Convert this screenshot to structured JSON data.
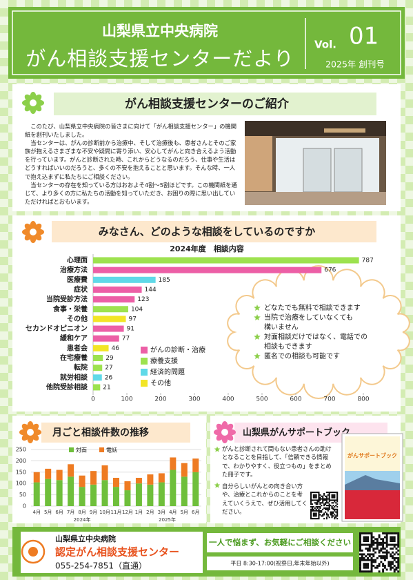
{
  "header": {
    "hospital": "山梨県立中央病院",
    "title": "がん相談支援センターだより",
    "vol_label": "Vol.",
    "vol_number": "01",
    "issue": "2025年 創刊号"
  },
  "intro": {
    "heading": "がん相談支援センターのご紹介",
    "paragraphs": [
      "このたび、山梨県立中央病院の皆さまに向けて「がん相談支援センター」の機関紙を創刊いたしました。",
      "当センターは、がんの診断前から治療中、そして治療後も、患者さんとそのご家族が抱えるさまざまな不安や疑問に寄り添い、安心してがんと向き合えるよう活動を行っています。がんと診断された時、これからどうなるのだろう、仕事や生活はどうすればいいのだろうと、多くの不安を抱えることと思います。そんな時、一人で抱え込まずに私たちにご相談ください。",
      "当センターの存在を知っている方はおおよそ4割〜5割ほどです。この機関紙を通じて、より多くの方に私たちの活動を知っていただき、お困りの際に思い出していただければとおもいます。"
    ]
  },
  "consult": {
    "heading": "みなさん、どのような相談をしているのですか",
    "bubble": [
      [
        "どなたでも無料で相談できます"
      ],
      [
        "当院で治療をしていなくても",
        "構いません"
      ],
      [
        "対面相談だけではなく、電話での",
        "相談もできます"
      ],
      [
        "匿名での相談も可能です"
      ]
    ]
  },
  "monthly": {
    "heading": "月ごと相談件数の推移"
  },
  "support_book": {
    "heading": "山梨県がんサポートブック",
    "items": [
      "がんと診断されて間もない患者さんの助けとなることを目指して、「信頼できる情報で、わかりやすく、役立つもの」をまとめた冊子です。",
      "自分らしいがんとの向き合い方や、治療とこれからのことを考えていくうえで、ぜひ活用してください。"
    ],
    "cover_title": "がんサポートブック"
  },
  "footer": {
    "hospital": "山梨県立中央病院",
    "center": "認定がん相談支援センター",
    "phone": "055-254-7851（直通）",
    "message": "一人で悩まず、お気軽にご相談ください",
    "hours": "平日 8:30-17:00(祝祭日,年末年始以外)"
  },
  "chart_data": [
    {
      "type": "barh",
      "title": "2024年度　相談内容",
      "categories": [
        "心理面",
        "治療方法",
        "医療費",
        "症状",
        "当院受診方法",
        "食事・栄養",
        "その他",
        "セカンドオピニオン",
        "緩和ケア",
        "患者会",
        "在宅療養",
        "転院",
        "就労相談",
        "他院受診相談"
      ],
      "series": [
        {
          "name": "がんの診断・治療",
          "color": "#ec5fa6",
          "values": [
            null,
            676,
            null,
            144,
            123,
            null,
            null,
            91,
            77,
            null,
            null,
            null,
            null,
            null
          ]
        },
        {
          "name": "療養支援",
          "color": "#9de24f",
          "values": [
            787,
            null,
            null,
            null,
            null,
            104,
            null,
            null,
            null,
            null,
            29,
            27,
            null,
            21
          ]
        },
        {
          "name": "経済的問題",
          "color": "#5fd9e8",
          "values": [
            null,
            null,
            185,
            null,
            null,
            null,
            null,
            null,
            null,
            null,
            null,
            null,
            26,
            null
          ]
        },
        {
          "name": "その他",
          "color": "#f2e526",
          "values": [
            null,
            null,
            null,
            null,
            null,
            null,
            97,
            null,
            null,
            46,
            null,
            null,
            null,
            null
          ]
        }
      ],
      "xlim": [
        0,
        800
      ],
      "xticks": [
        0,
        100,
        200,
        300,
        400,
        500,
        600,
        700,
        800
      ]
    },
    {
      "type": "bar",
      "stacked": true,
      "categories": [
        "4月",
        "5月",
        "6月",
        "7月",
        "8月",
        "9月",
        "10月",
        "11月",
        "12月",
        "1月",
        "2月",
        "3月",
        "4月",
        "5月",
        "6月"
      ],
      "period_labels": [
        "2024年",
        "2025年"
      ],
      "series": [
        {
          "name": "対面",
          "color": "#6fbf3b",
          "values": [
            105,
            120,
            115,
            130,
            85,
            95,
            115,
            85,
            70,
            100,
            95,
            105,
            160,
            130,
            150
          ]
        },
        {
          "name": "電話",
          "color": "#ee7b22",
          "values": [
            45,
            45,
            45,
            55,
            50,
            60,
            65,
            40,
            40,
            25,
            45,
            40,
            55,
            60,
            60
          ]
        }
      ],
      "ylim": [
        0,
        250
      ],
      "yticks": [
        0,
        50,
        100,
        150,
        200,
        250
      ],
      "grid": true
    }
  ]
}
